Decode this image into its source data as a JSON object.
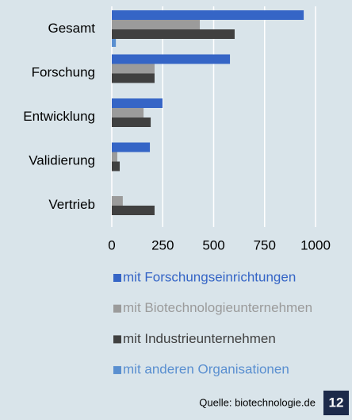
{
  "chart_data": {
    "type": "hbar",
    "categories": [
      "Gesamt",
      "Forschung",
      "Entwicklung",
      "Validierung",
      "Vertrieb"
    ],
    "series": [
      {
        "name": "mit Forschungseinrichtungen",
        "color": "#3565c6",
        "values": [
          942,
          580,
          249,
          187,
          0
        ]
      },
      {
        "name": "mit Biotechnologieunternehmen",
        "color": "#9b9b9b",
        "values": [
          432,
          210,
          156,
          27,
          54
        ]
      },
      {
        "name": "mit Industrieunternehmen",
        "color": "#404040",
        "values": [
          603,
          210,
          191,
          39,
          210
        ]
      },
      {
        "name": "mit anderen Organisationen",
        "color": "#5a8fd0",
        "values": [
          20,
          0,
          0,
          0,
          0
        ]
      }
    ],
    "xlim": [
      0,
      1000
    ],
    "xticks": [
      0,
      250,
      500,
      750,
      1000
    ],
    "grid": true,
    "source": "Quelle: biotechnologie.de",
    "page_number": "12"
  }
}
